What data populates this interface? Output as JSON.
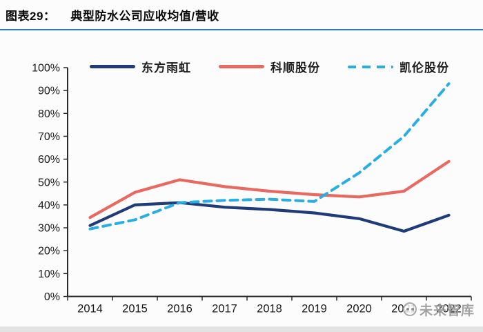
{
  "header": {
    "tag": "图表29：",
    "title": "典型防水公司应收均值/营收"
  },
  "watermark": {
    "text": "未来智库"
  },
  "chart_data": {
    "type": "line",
    "title": "典型防水公司应收均值/营收",
    "categories": [
      "2014",
      "2015",
      "2016",
      "2017",
      "2018",
      "2019",
      "2020",
      "2021",
      "2022"
    ],
    "y_ticks": [
      "0%",
      "10%",
      "20%",
      "30%",
      "40%",
      "50%",
      "60%",
      "70%",
      "80%",
      "90%",
      "100%"
    ],
    "ylim": [
      0,
      100
    ],
    "xlabel": "",
    "ylabel": "",
    "grid": false,
    "legend_position": "top",
    "series": [
      {
        "name": "东方雨虹",
        "color": "#1f3c78",
        "line_style": "solid",
        "values": [
          31,
          40,
          41,
          39,
          38,
          36.5,
          34,
          28.5,
          35.5
        ]
      },
      {
        "name": "科顺股份",
        "color": "#e8695f",
        "line_style": "solid",
        "values": [
          34.5,
          45.5,
          51,
          48,
          46,
          44.5,
          43.5,
          46,
          59
        ]
      },
      {
        "name": "凯伦股份",
        "color": "#29aee3",
        "line_style": "dashed",
        "values": [
          29.5,
          33.5,
          41,
          42,
          42.5,
          41.5,
          54,
          70,
          93
        ]
      }
    ]
  }
}
